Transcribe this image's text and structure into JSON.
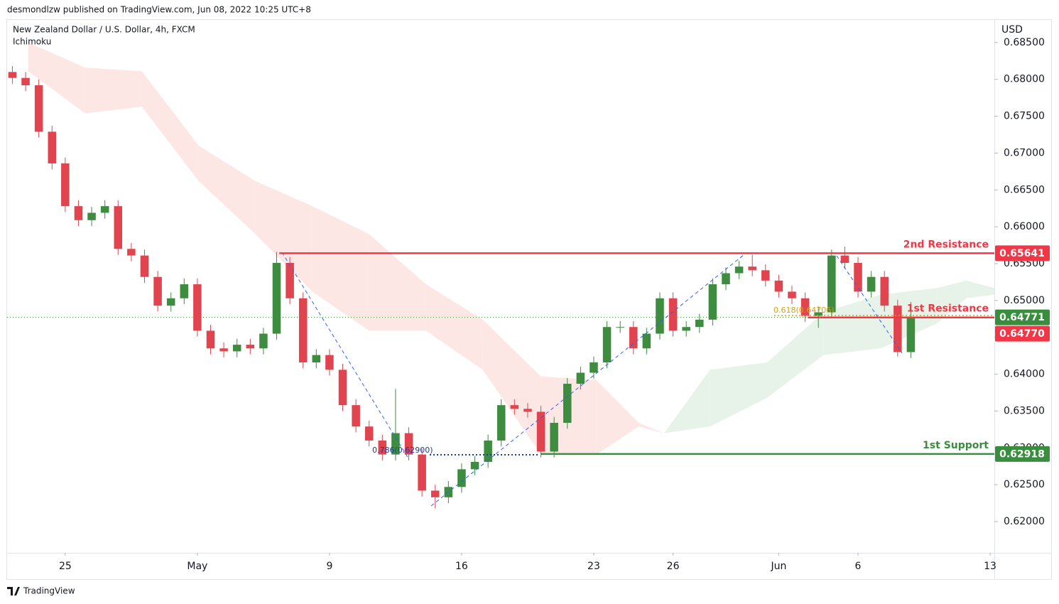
{
  "header": {
    "published": "desmondlzw published on TradingView.com, Jun 08, 2022 10:25 UTC+8",
    "brand": "TradingView"
  },
  "chart_data": {
    "type": "candlestick",
    "symbol": "New Zealand Dollar / U.S. Dollar, 4h, FXCM",
    "indicator": "Ichimoku",
    "currency": "USD",
    "up_color": "#3d8c40",
    "down_color": "#e0454f",
    "x": [
      -2,
      -1.5,
      -1,
      -0.5,
      0,
      0.5,
      1,
      1.5,
      2,
      2.5,
      3,
      3.5,
      4,
      4.5,
      5,
      5.5,
      6,
      6.5,
      7,
      7.5,
      8,
      8.5,
      9,
      9.5,
      10,
      10.5,
      11,
      11.5,
      12,
      12.5,
      13,
      13.5,
      14,
      14.5,
      15,
      15.5,
      16,
      16.5,
      17,
      17.5,
      18,
      18.5,
      19,
      19.5,
      20,
      20.5,
      21,
      21.5,
      22,
      22.5,
      23,
      23.5,
      24,
      24.5,
      25,
      25.5,
      26,
      26.5,
      27,
      27.5,
      28,
      28.5,
      29,
      29.5,
      30,
      30.5,
      31,
      31.5,
      32
    ],
    "open": [
      0.681,
      0.6802,
      0.6792,
      0.6729,
      0.6686,
      0.6628,
      0.6609,
      0.6619,
      0.6628,
      0.657,
      0.6561,
      0.6532,
      0.6493,
      0.6503,
      0.6522,
      0.6459,
      0.6435,
      0.6431,
      0.644,
      0.6435,
      0.6455,
      0.6551,
      0.6503,
      0.6416,
      0.6426,
      0.6406,
      0.6358,
      0.6329,
      0.631,
      0.6291,
      0.632,
      0.6291,
      0.6242,
      0.6233,
      0.6247,
      0.6271,
      0.6281,
      0.631,
      0.6358,
      0.6353,
      0.6349,
      0.6295,
      0.6334,
      0.6387,
      0.6402,
      0.6416,
      0.6464,
      0.6464,
      0.6435,
      0.6455,
      0.6503,
      0.6459,
      0.6464,
      0.6474,
      0.6522,
      0.6537,
      0.6546,
      0.6541,
      0.6527,
      0.6512,
      0.6503,
      0.6479,
      0.6484,
      0.6561,
      0.6551,
      0.6512,
      0.6532,
      0.6493,
      0.643
    ],
    "high": [
      0.6818,
      0.681,
      0.68,
      0.6737,
      0.6694,
      0.6636,
      0.6627,
      0.6636,
      0.6636,
      0.6578,
      0.6569,
      0.654,
      0.6511,
      0.653,
      0.653,
      0.6467,
      0.6443,
      0.6448,
      0.6448,
      0.6463,
      0.6566,
      0.6559,
      0.6511,
      0.6434,
      0.6434,
      0.6414,
      0.6366,
      0.6337,
      0.6318,
      0.638,
      0.6328,
      0.6299,
      0.625,
      0.6255,
      0.6279,
      0.6289,
      0.6318,
      0.6366,
      0.6366,
      0.6361,
      0.6357,
      0.6342,
      0.6395,
      0.641,
      0.6424,
      0.6472,
      0.6472,
      0.6472,
      0.6463,
      0.6511,
      0.6511,
      0.6472,
      0.6482,
      0.653,
      0.6545,
      0.6554,
      0.6562,
      0.6549,
      0.6535,
      0.652,
      0.6511,
      0.6492,
      0.6569,
      0.6573,
      0.6559,
      0.654,
      0.654,
      0.6501,
      0.6498
    ],
    "low": [
      0.6794,
      0.6784,
      0.6721,
      0.6678,
      0.662,
      0.6601,
      0.6601,
      0.6611,
      0.6562,
      0.6553,
      0.6524,
      0.6485,
      0.6485,
      0.6495,
      0.6451,
      0.6427,
      0.6423,
      0.6423,
      0.6427,
      0.6427,
      0.6447,
      0.6495,
      0.6408,
      0.6408,
      0.6398,
      0.635,
      0.6321,
      0.6302,
      0.6283,
      0.6283,
      0.6283,
      0.6234,
      0.6218,
      0.6225,
      0.6239,
      0.6263,
      0.6273,
      0.6302,
      0.6345,
      0.6341,
      0.6287,
      0.6287,
      0.6326,
      0.6379,
      0.6394,
      0.6408,
      0.6456,
      0.6427,
      0.6427,
      0.6447,
      0.6451,
      0.6451,
      0.6456,
      0.6466,
      0.6514,
      0.6529,
      0.6533,
      0.6519,
      0.6504,
      0.6495,
      0.6471,
      0.6463,
      0.6476,
      0.6543,
      0.6504,
      0.6504,
      0.6485,
      0.6424,
      0.6422
    ],
    "close": [
      0.6802,
      0.6792,
      0.6729,
      0.6686,
      0.6628,
      0.6609,
      0.6619,
      0.6628,
      0.657,
      0.6561,
      0.6532,
      0.6493,
      0.6503,
      0.6522,
      0.6459,
      0.6435,
      0.6431,
      0.644,
      0.6435,
      0.6455,
      0.6551,
      0.6503,
      0.6416,
      0.6426,
      0.6406,
      0.6358,
      0.6329,
      0.631,
      0.6291,
      0.632,
      0.6291,
      0.6242,
      0.6233,
      0.6247,
      0.6271,
      0.6281,
      0.631,
      0.6358,
      0.6353,
      0.6349,
      0.6295,
      0.6334,
      0.6387,
      0.6402,
      0.6416,
      0.6464,
      0.6464,
      0.6435,
      0.6455,
      0.6503,
      0.6459,
      0.6464,
      0.6474,
      0.6522,
      0.6537,
      0.6546,
      0.6541,
      0.6527,
      0.6512,
      0.6503,
      0.6479,
      0.6484,
      0.6561,
      0.6551,
      0.6512,
      0.6532,
      0.6493,
      0.643,
      0.6477
    ],
    "ichimoku": {
      "x": [
        -1.4,
        0.75,
        2.9,
        5.05,
        7.2,
        9.35,
        11.5,
        13.65,
        15.8,
        18.0,
        20.1,
        21.7,
        22.66,
        24.4,
        26.56,
        28.7,
        30.86,
        33.0,
        34.1,
        35.16
      ],
      "span_a": [
        0.6811,
        0.6754,
        0.6763,
        0.6662,
        0.659,
        0.6512,
        0.6459,
        0.6459,
        0.6406,
        0.6291,
        0.6291,
        0.6329,
        0.632,
        0.6406,
        0.6416,
        0.6484,
        0.6508,
        0.6517,
        0.6527,
        0.6517
      ],
      "span_b": [
        0.685,
        0.6816,
        0.6811,
        0.671,
        0.6662,
        0.6628,
        0.659,
        0.6522,
        0.6474,
        0.6397,
        0.6392,
        0.6334,
        0.632,
        0.6329,
        0.6368,
        0.6426,
        0.6435,
        0.6469,
        0.6503,
        0.6508
      ],
      "bear_color": "#fde3e1",
      "bull_color": "#e3f1e4"
    },
    "levels": [
      {
        "name": "2nd Resistance",
        "value": 0.65641,
        "start": 8.1,
        "color": "#f23645"
      },
      {
        "name": "1st Resistance",
        "value": {
          "value": 0.6477,
          "label": "0.64770"
        },
        "start": 28.1,
        "color": "#f23645"
      },
      {
        "name": "1st Support",
        "value": 0.62918,
        "start": 18.0,
        "color": "#388e3c"
      }
    ],
    "last_price": 0.64771,
    "last_price_color": "#388e3c",
    "annotations": [
      "0.786(0.62900)",
      "0.618(0.64706)"
    ],
    "xlim": [
      -2.2,
      35.16
    ],
    "xticks": [
      {
        "value": 0,
        "label": "25"
      },
      {
        "value": 5,
        "label": "May"
      },
      {
        "value": 10,
        "label": "9"
      },
      {
        "value": 15,
        "label": "16"
      },
      {
        "value": 20,
        "label": "23"
      },
      {
        "value": 23,
        "label": "26"
      },
      {
        "value": 27,
        "label": "Jun"
      },
      {
        "value": 30,
        "label": "6"
      },
      {
        "value": 35,
        "label": "13"
      }
    ],
    "ylim": [
      0.61576,
      0.68788
    ],
    "yticks": [
      {
        "value": 0.62,
        "label": "0.62000"
      },
      {
        "value": 0.625,
        "label": "0.62500"
      },
      {
        "value": 0.63,
        "label": "0.63000"
      },
      {
        "value": 0.635,
        "label": "0.63500"
      },
      {
        "value": 0.64,
        "label": "0.64000"
      },
      {
        "value": 0.645,
        "label": "0.64500"
      },
      {
        "value": 0.65,
        "label": "0.65000"
      },
      {
        "value": 0.655,
        "label": "0.65500"
      },
      {
        "value": 0.66,
        "label": "0.66000"
      },
      {
        "value": 0.665,
        "label": "0.66500"
      },
      {
        "value": 0.67,
        "label": "0.67000"
      },
      {
        "value": 0.675,
        "label": "0.67500"
      },
      {
        "value": 0.68,
        "label": "0.68000"
      },
      {
        "value": 0.685,
        "label": "0.68500"
      }
    ]
  }
}
